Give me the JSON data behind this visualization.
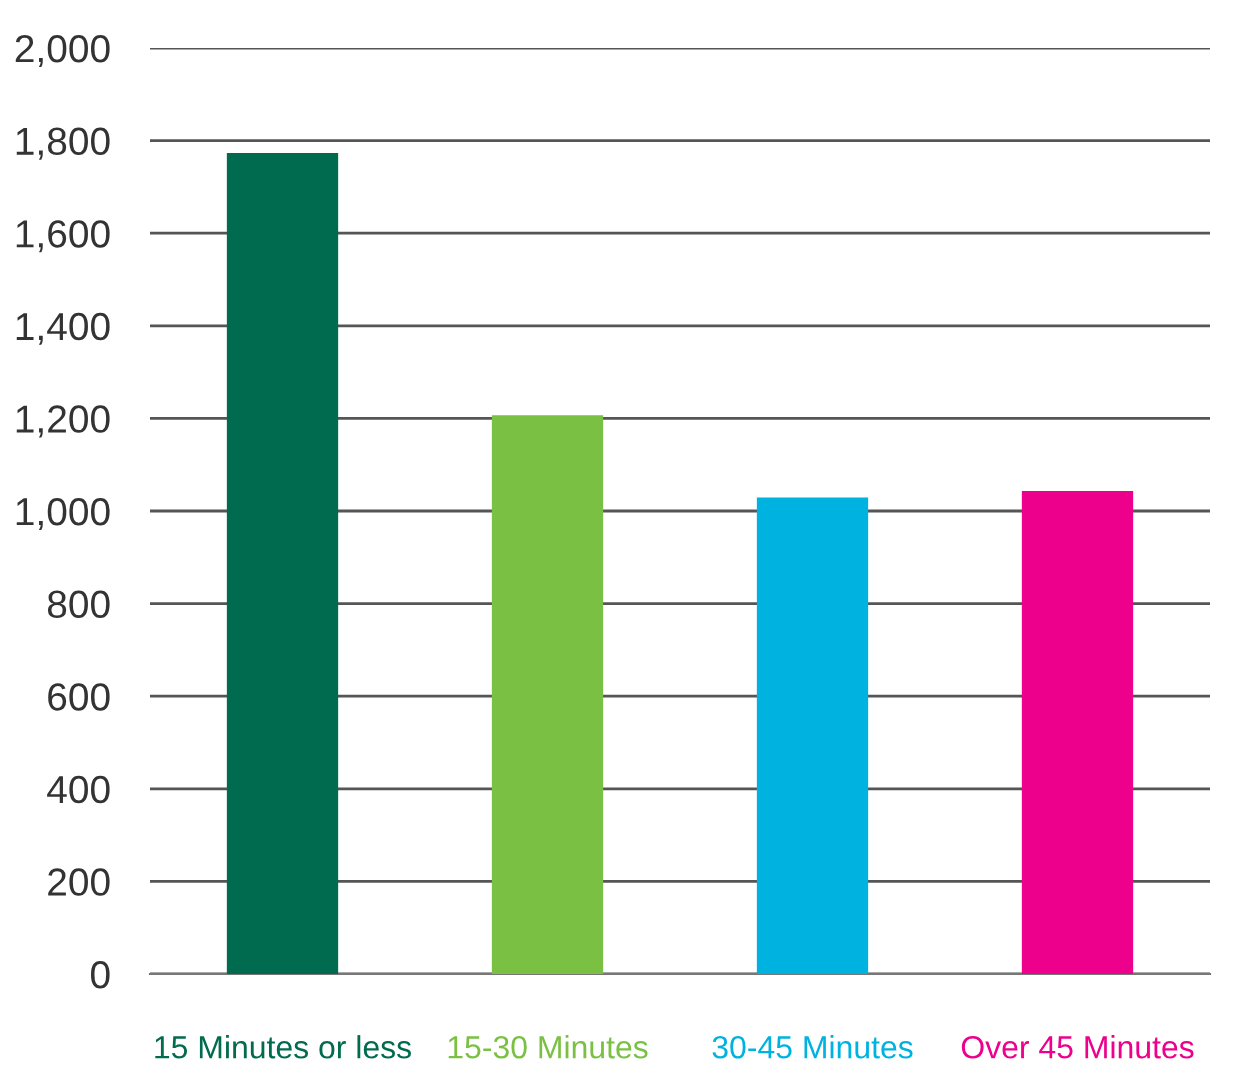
{
  "chart_data": {
    "type": "bar",
    "categories": [
      "15 Minutes or less",
      "15-30 Minutes",
      "30-45 Minutes",
      "Over 45 Minutes"
    ],
    "values": [
      1773,
      1207,
      1029,
      1043
    ],
    "colors": [
      "#006b4e",
      "#7ac143",
      "#00b2e0",
      "#ec008c"
    ],
    "ylim": [
      0,
      2000
    ],
    "yticks": [
      0,
      200,
      400,
      600,
      800,
      {
        "value": 1000,
        "label": "1,000"
      },
      {
        "value": 1200,
        "label": "1,200"
      },
      {
        "value": 1400,
        "label": "1,400"
      },
      {
        "value": 1600,
        "label": "1,600"
      },
      {
        "value": 1800,
        "label": "1,800"
      },
      {
        "value": 2000,
        "label": "2,000"
      }
    ],
    "grid": "y"
  }
}
